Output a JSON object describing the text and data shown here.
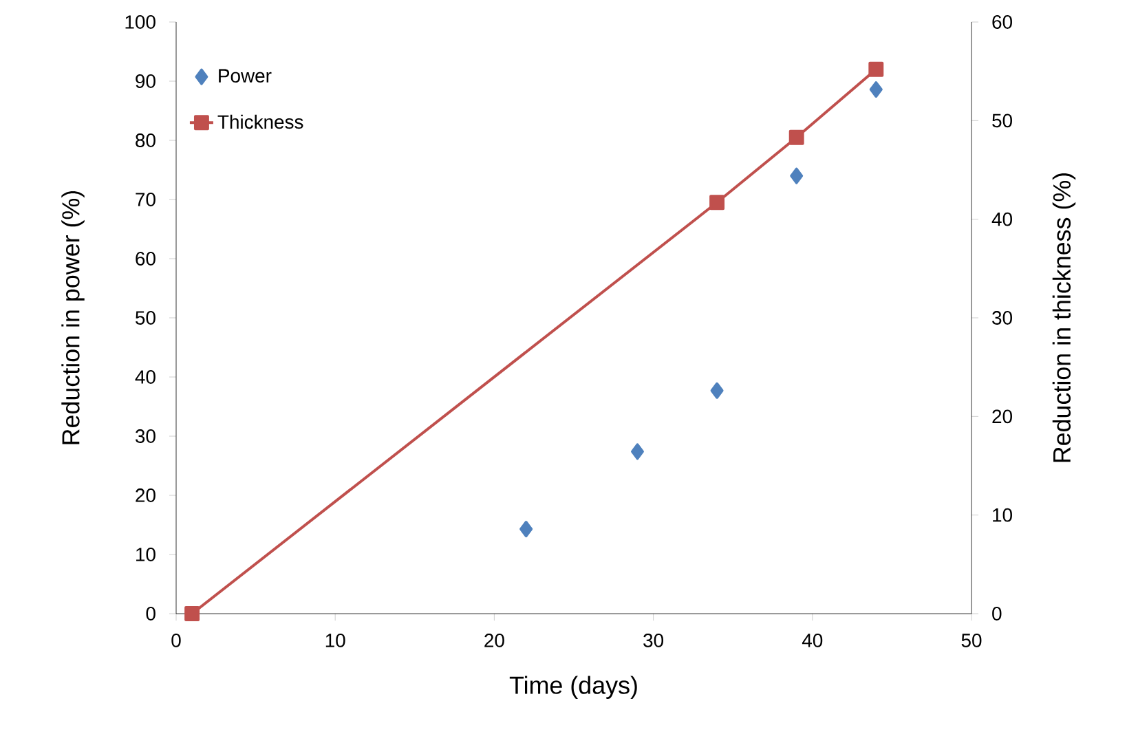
{
  "chart_data": {
    "type": "scatter",
    "xlabel": "Time (days)",
    "ylabel": "Reduction in power (%)",
    "y2label": "Reduction in thickness (%)",
    "xlim": [
      0,
      50
    ],
    "xticks": [
      0,
      10,
      20,
      30,
      40,
      50
    ],
    "ylim": [
      0,
      100
    ],
    "yticks": [
      0,
      10,
      20,
      30,
      40,
      50,
      60,
      70,
      80,
      90,
      100
    ],
    "y2lim": [
      0,
      60
    ],
    "y2ticks": [
      0,
      10,
      20,
      30,
      40,
      50,
      60
    ],
    "legend": "top left",
    "series": [
      {
        "name": "Power",
        "type": "scatter",
        "marker": "diamond",
        "color": "#4f81bd",
        "x": [
          22,
          29,
          34,
          39,
          44
        ],
        "values": [
          14.3,
          27.4,
          37.7,
          74.0,
          88.6
        ]
      },
      {
        "name": "Thickness",
        "type": "line",
        "marker": "square",
        "axis": "y2",
        "color": "#c0504d",
        "x": [
          1,
          34,
          39,
          44
        ],
        "values": [
          0,
          41.7,
          48.3,
          55.2
        ]
      }
    ]
  }
}
